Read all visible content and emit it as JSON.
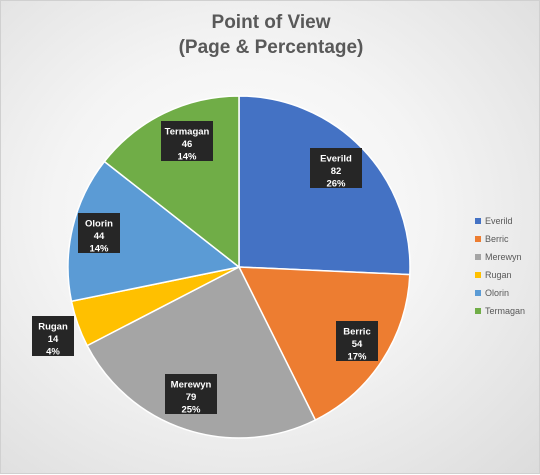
{
  "chart_data": {
    "type": "pie",
    "title_lines": [
      "Point of View",
      "(Page & Percentage)"
    ],
    "slices": [
      {
        "name": "Everild",
        "value": 82,
        "percent": "26%",
        "color": "#4472C4"
      },
      {
        "name": "Berric",
        "value": 54,
        "percent": "17%",
        "color": "#ED7D31"
      },
      {
        "name": "Merewyn",
        "value": 79,
        "percent": "25%",
        "color": "#A5A5A5"
      },
      {
        "name": "Rugan",
        "value": 14,
        "percent": "4%",
        "color": "#FFC000"
      },
      {
        "name": "Olorin",
        "value": 44,
        "percent": "14%",
        "color": "#5B9BD5"
      },
      {
        "name": "Termagan",
        "value": 46,
        "percent": "14%",
        "color": "#70AD47"
      }
    ],
    "legend_position": "right",
    "data_label_style": "dark callout boxes"
  }
}
